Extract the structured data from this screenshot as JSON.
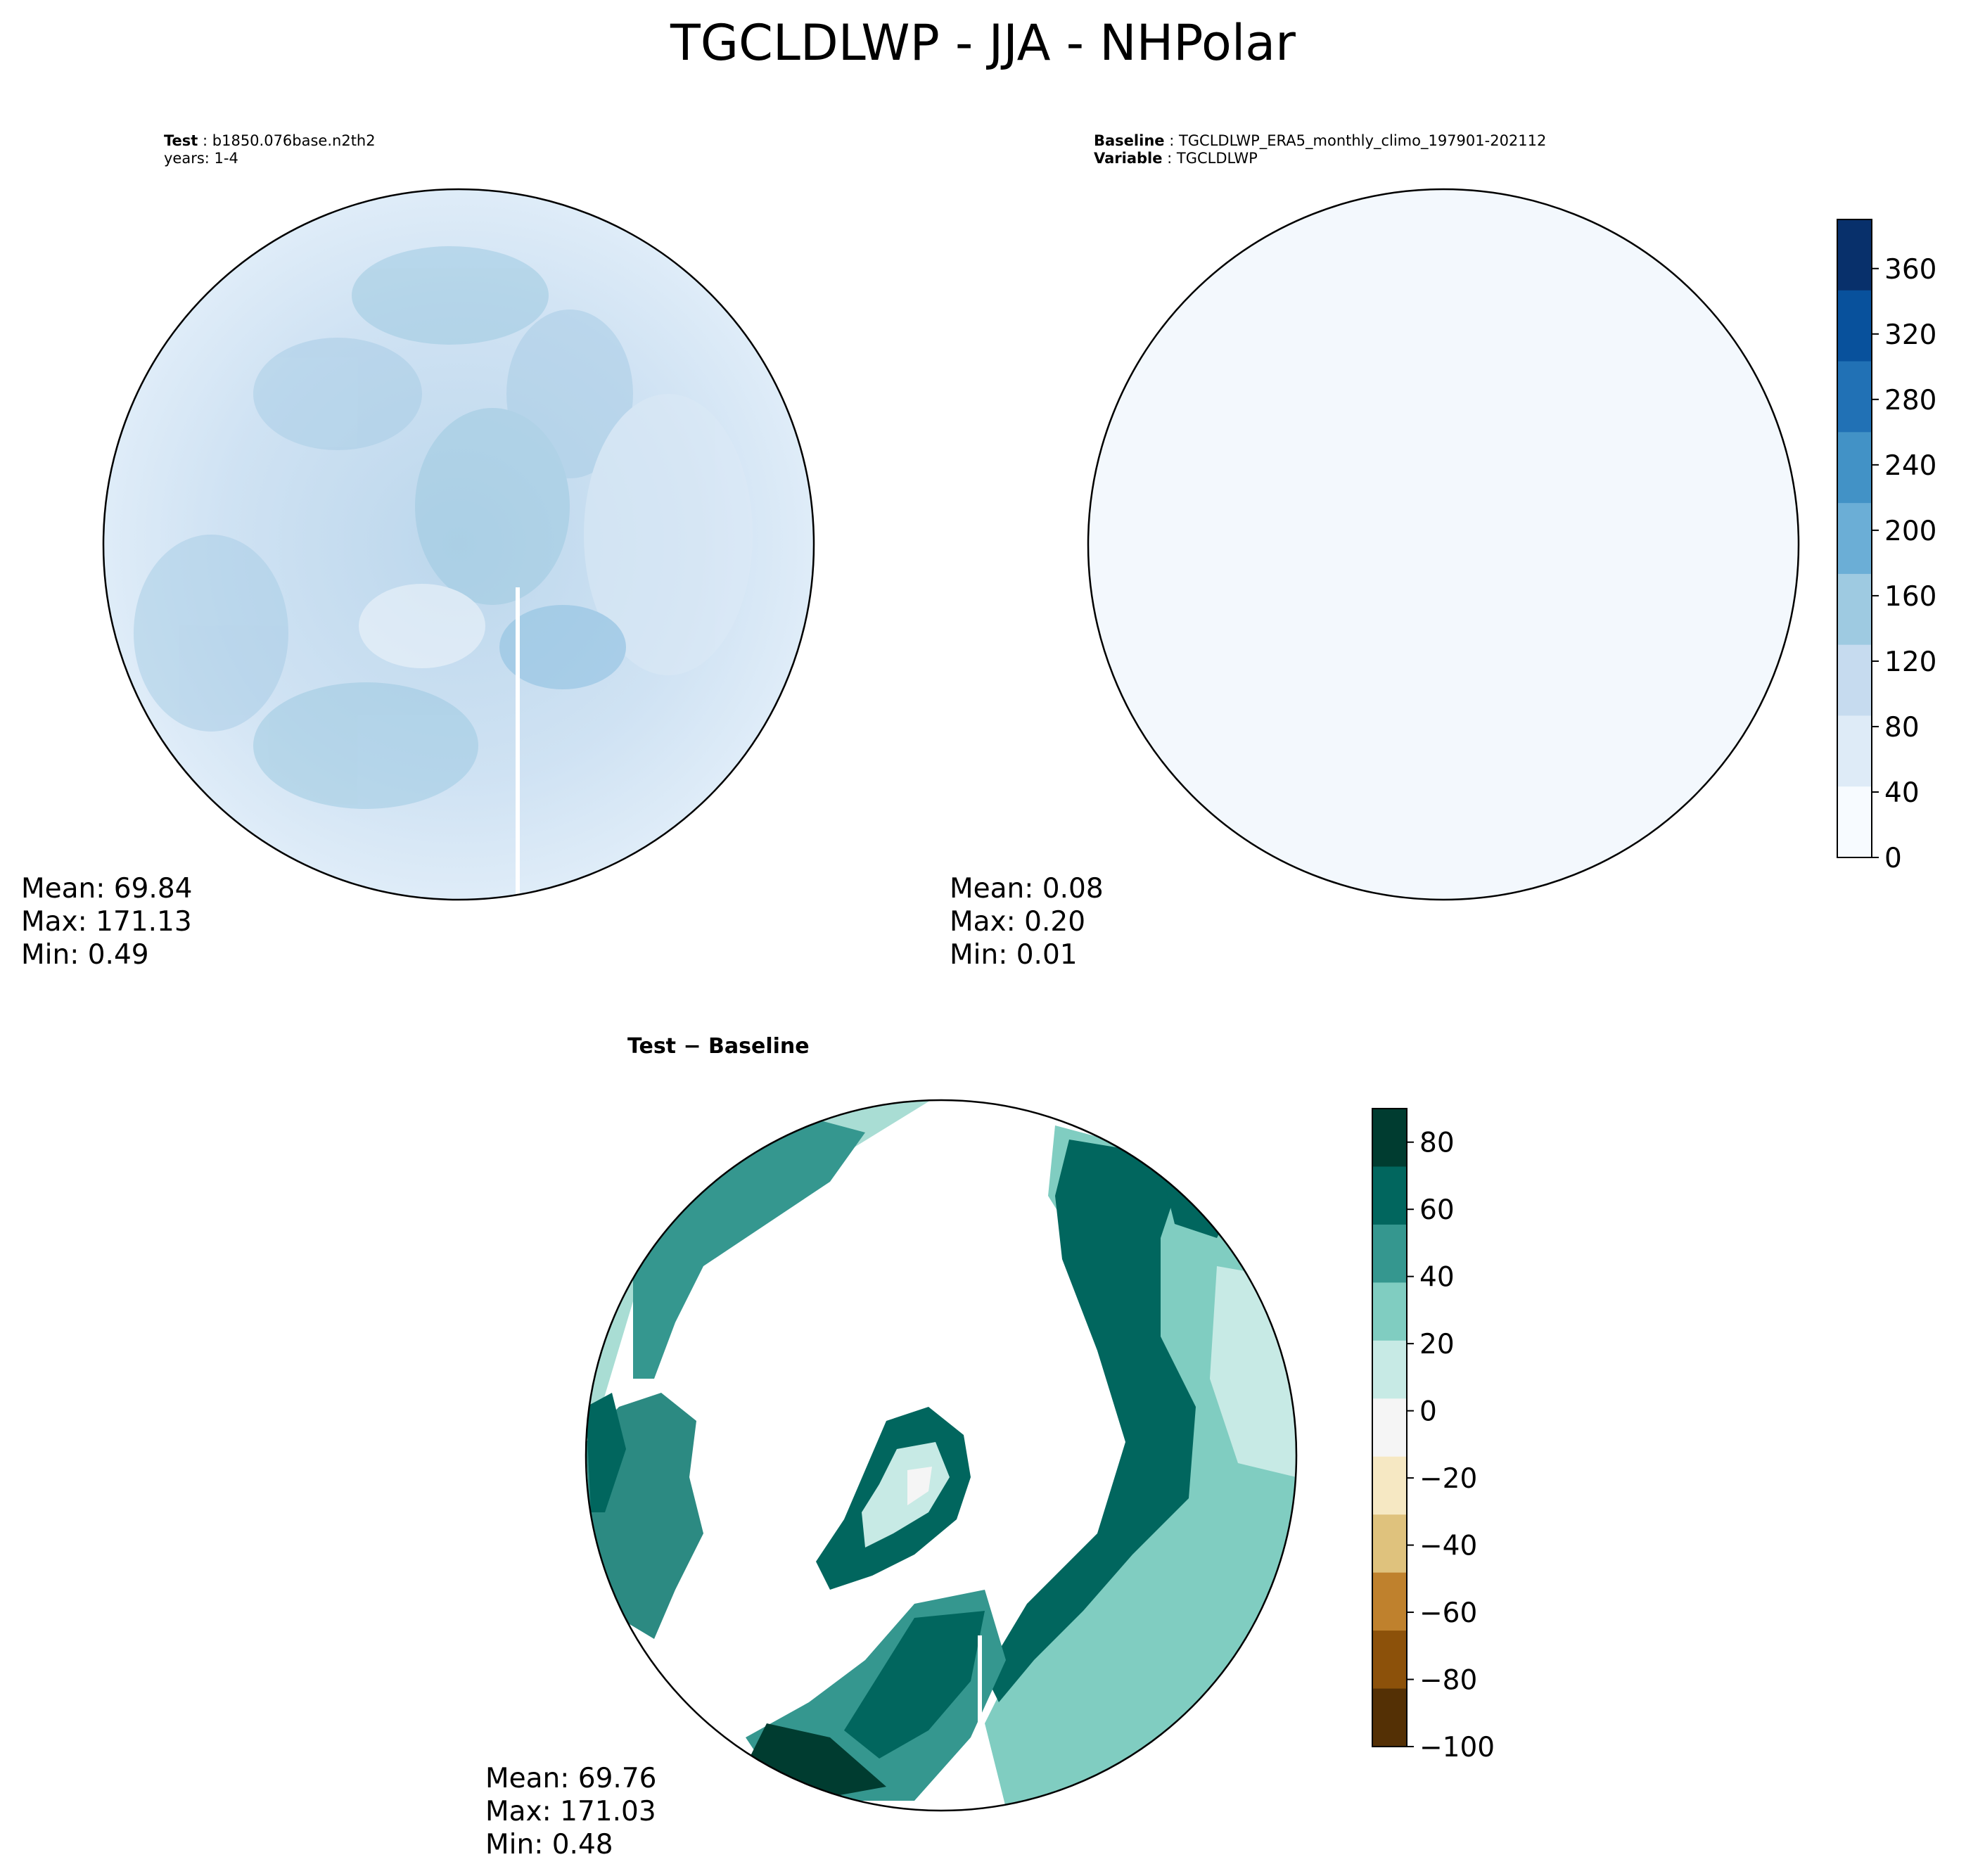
{
  "title": "TGCLDLWP - JJA - NHPolar",
  "panels": {
    "test": {
      "label": "Test",
      "case": "b1850.076base.n2th2",
      "years": "years: 1-4",
      "mean": "Mean: 69.84",
      "max": "Max: 171.13",
      "min": "Min:  0.49"
    },
    "baseline": {
      "label": "Baseline",
      "case": "TGCLDLWP_ERA5_monthly_climo_197901-202112",
      "var_label": "Variable",
      "variable": "TGCLDLWP",
      "mean": "Mean:  0.08",
      "max": "Max:  0.20",
      "min": "Min:  0.01"
    },
    "diff": {
      "title": "Test − Baseline",
      "mean": "Mean: 69.76",
      "max": "Max: 171.03",
      "min": "Min:  0.48"
    }
  },
  "colorbars": {
    "main": {
      "ticks": [
        "0",
        "40",
        "80",
        "120",
        "160",
        "200",
        "240",
        "280",
        "320",
        "360"
      ],
      "range": [
        0,
        390
      ],
      "colors": [
        "#f7fbff",
        "#deebf7",
        "#c6dbef",
        "#9ecae1",
        "#6baed6",
        "#4292c6",
        "#2171b5",
        "#08519c",
        "#08306b"
      ]
    },
    "diff": {
      "ticks": [
        "−100",
        "−80",
        "−60",
        "−40",
        "−20",
        "0",
        "20",
        "40",
        "60",
        "80"
      ],
      "range": [
        -100,
        90
      ],
      "colors": [
        "#543005",
        "#8c510a",
        "#bf812d",
        "#dfc27d",
        "#f6e8c3",
        "#f5f5f5",
        "#c7eae5",
        "#80cdc1",
        "#35978f",
        "#01665e",
        "#003c30"
      ]
    }
  }
}
